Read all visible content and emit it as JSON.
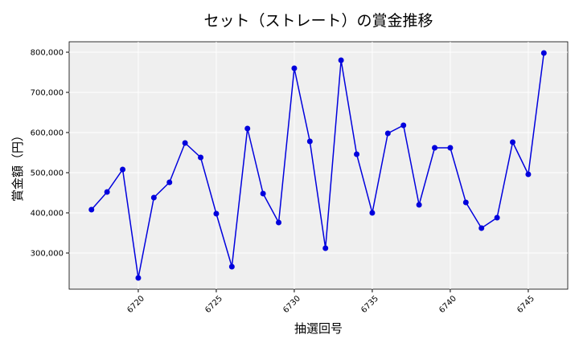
{
  "chart_data": {
    "type": "line",
    "title": "セット（ストレート）の賞金推移",
    "x_label": "抽選回号",
    "y_label": "賞金額（円）",
    "x": [
      6717,
      6718,
      6719,
      6720,
      6721,
      6722,
      6723,
      6724,
      6725,
      6726,
      6727,
      6728,
      6729,
      6730,
      6731,
      6732,
      6733,
      6734,
      6735,
      6736,
      6737,
      6738,
      6739,
      6740,
      6741,
      6742,
      6743,
      6744,
      6745,
      6746
    ],
    "series": [
      {
        "color": "#0000dd",
        "values": [
          408000,
          452000,
          508000,
          238000,
          438000,
          476000,
          574000,
          538000,
          398000,
          266000,
          610000,
          448000,
          376000,
          760000,
          578000,
          312000,
          780000,
          546000,
          400000,
          598000,
          618000,
          420000,
          562000,
          562000,
          426000,
          362000,
          388000,
          576000,
          496000,
          798000
        ]
      }
    ],
    "xlim": [
      6715.57,
      6747.53
    ],
    "ylim": [
      210000,
      826000
    ],
    "xticks": [
      6720,
      6725,
      6730,
      6735,
      6740,
      6745
    ],
    "yticks": [
      {
        "value": 300000,
        "label": "300,000"
      },
      {
        "value": 400000,
        "label": "400,000"
      },
      {
        "value": 500000,
        "label": "500,000"
      },
      {
        "value": 600000,
        "label": "600,000"
      },
      {
        "value": 700000,
        "label": "700,000"
      },
      {
        "value": 800000,
        "label": "800,000"
      }
    ],
    "grid": true
  }
}
